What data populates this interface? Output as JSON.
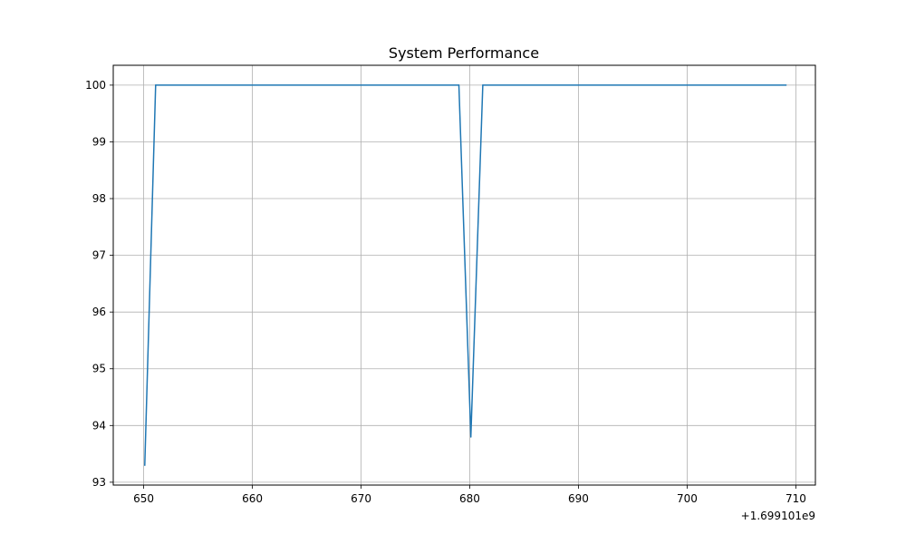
{
  "chart_data": {
    "type": "line",
    "title": "System Performance",
    "xlabel": "",
    "ylabel": "",
    "x_offset_label": "+1.699101e9",
    "xlim": [
      647.2,
      711.8
    ],
    "ylim": [
      92.95,
      100.35
    ],
    "x_ticks": [
      650,
      660,
      670,
      680,
      690,
      700,
      710
    ],
    "x_tick_labels": [
      "650",
      "660",
      "670",
      "680",
      "690",
      "700",
      "710"
    ],
    "y_ticks": [
      93,
      94,
      95,
      96,
      97,
      98,
      99,
      100
    ],
    "y_tick_labels": [
      "93",
      "94",
      "95",
      "96",
      "97",
      "98",
      "99",
      "100"
    ],
    "grid": true,
    "series": [
      {
        "color": "#1f77b4",
        "x": [
          650.1,
          651.1,
          679.0,
          680.1,
          681.2,
          709.1
        ],
        "y": [
          93.3,
          100,
          100,
          93.8,
          100,
          100
        ]
      }
    ]
  }
}
